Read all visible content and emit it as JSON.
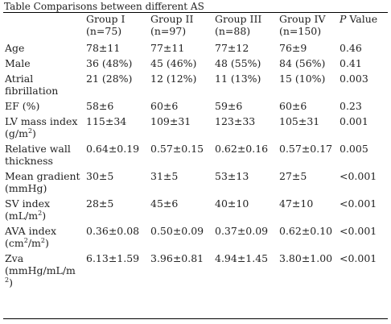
{
  "caption": "Table Comparisons between different AS",
  "headers": [
    {
      "name": "Group I",
      "n": "(n=75)"
    },
    {
      "name": "Group II",
      "n": "(n=97)"
    },
    {
      "name": "Group III",
      "n": "(n=88)"
    },
    {
      "name": "Group IV",
      "n": "(n=150)"
    }
  ],
  "p_value_p": "P",
  "p_value_rest": " Value",
  "rows": [
    {
      "label": [
        "Age"
      ],
      "values": [
        "78±11",
        "77±11",
        "77±12",
        "76±9",
        "0.46"
      ]
    },
    {
      "label": [
        "Male"
      ],
      "values": [
        "36 (48%)",
        "45 (46%)",
        "48 (55%)",
        "84 (56%)",
        "0.41"
      ]
    },
    {
      "label": [
        "Atrial",
        "fibrillation"
      ],
      "values": [
        "21 (28%)",
        "12 (12%)",
        "11 (13%)",
        "15 (10%)",
        "0.003"
      ]
    },
    {
      "label": [
        "EF (%)"
      ],
      "values": [
        "58±6",
        "60±6",
        "59±6",
        "60±6",
        "0.23"
      ]
    },
    {
      "label": [
        "LV mass index",
        "(g/m",
        "2",
        ")"
      ],
      "values": [
        "115±34",
        "109±31",
        "123±33",
        "105±31",
        "0.001"
      ]
    },
    {
      "label": [
        "Relative wall",
        "thickness"
      ],
      "values": [
        "0.64±0.19",
        "0.57±0.15",
        "0.62±0.16",
        "0.57±0.17",
        "0.005"
      ]
    },
    {
      "label": [
        "Mean gradient",
        "(mmHg)"
      ],
      "values": [
        "30±5",
        "31±5",
        "53±13",
        "27±5",
        "<0.001"
      ]
    },
    {
      "label": [
        "SV index",
        "(mL/m",
        "2",
        ")"
      ],
      "values": [
        "28±5",
        "45±6",
        "40±10",
        "47±10",
        "<0.001"
      ]
    },
    {
      "label": [
        "AVA index",
        "(cm",
        "2",
        "/m",
        "2",
        ")"
      ],
      "values": [
        "0.36±0.08",
        "0.50±0.09",
        "0.37±0.09",
        "0.62±0.10",
        "<0.001"
      ]
    },
    {
      "label": [
        "Zva",
        "(mmHg/mL/m",
        "2",
        ")"
      ],
      "values": [
        "6.13±1.59",
        "3.96±0.81",
        "4.94±1.45",
        "3.80±1.00",
        "<0.001"
      ]
    }
  ]
}
